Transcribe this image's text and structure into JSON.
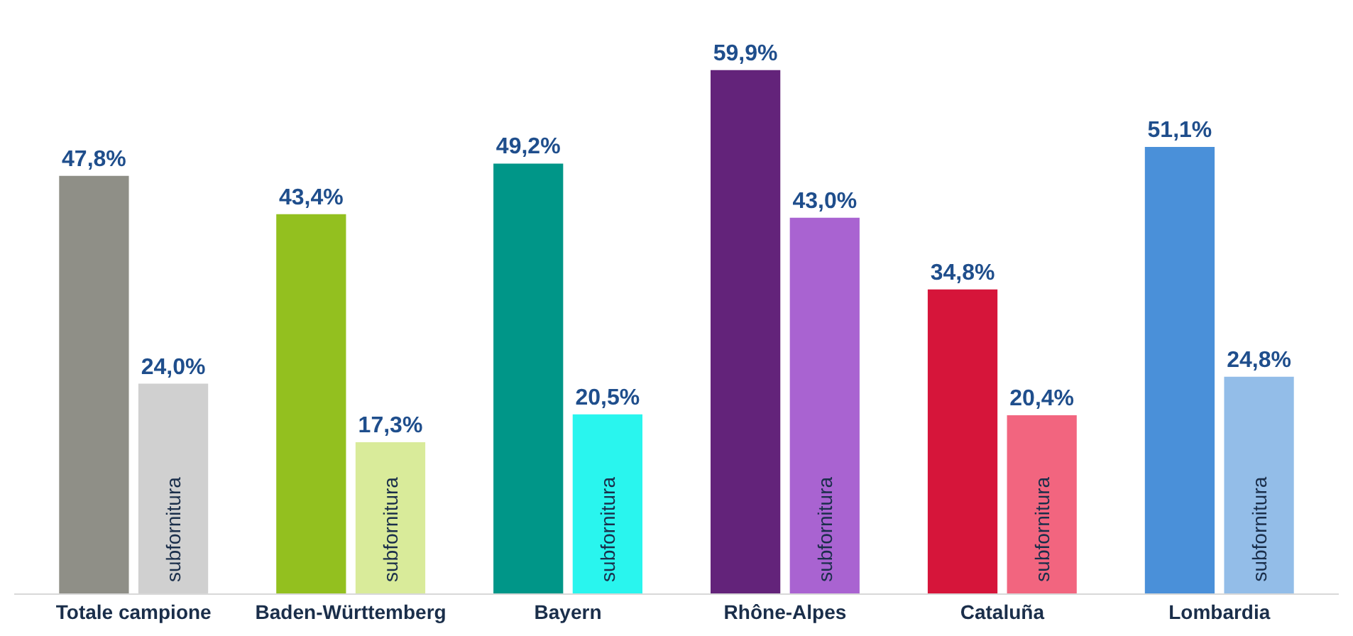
{
  "chart_data": {
    "type": "bar",
    "categories": [
      "Totale campione",
      "Baden-Württemberg",
      "Bayern",
      "Rhône-Alpes",
      "Cataluña",
      "Lombardia"
    ],
    "series": [
      {
        "colors": [
          "#8f8f87",
          "#93c01f",
          "#009688",
          "#63237a",
          "#d6153a",
          "#4a90d9"
        ],
        "values": [
          47.8,
          43.4,
          49.2,
          59.9,
          34.8,
          51.1
        ],
        "value_labels": [
          "47,8%",
          "43,4%",
          "49,2%",
          "59,9%",
          "34,8%",
          "51,1%"
        ]
      },
      {
        "name": "subfornitura",
        "colors": [
          "#d0d0d0",
          "#d9eb9a",
          "#29f5ee",
          "#a963d1",
          "#f2657f",
          "#93bde8"
        ],
        "values": [
          24.0,
          17.3,
          20.5,
          43.0,
          20.4,
          24.8
        ],
        "value_labels": [
          "24,0%",
          "17,3%",
          "20,5%",
          "43,0%",
          "20,4%",
          "24,8%"
        ]
      }
    ]
  }
}
